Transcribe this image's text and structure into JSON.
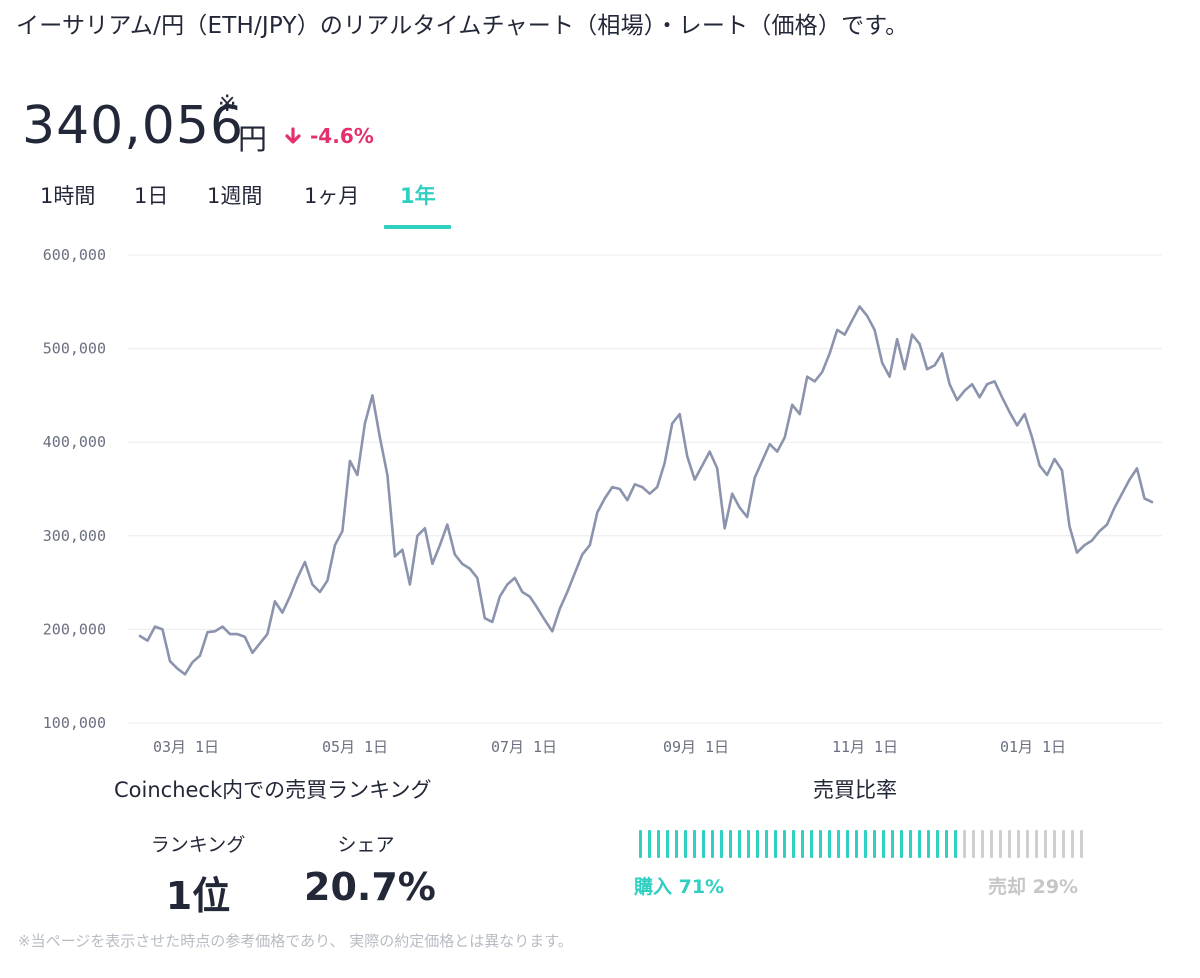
{
  "header": {
    "title": "イーサリアム/円（ETH/JPY）のリアルタイムチャート（相場）・レート（価格）です。"
  },
  "price": {
    "value": "340,056",
    "asterisk": "※",
    "unit": "円",
    "change": "-4.6%",
    "change_color": "#e5306f",
    "change_icon": "arrow-down-icon"
  },
  "tabs": [
    {
      "label": "1時間",
      "active": false
    },
    {
      "label": "1日",
      "active": false
    },
    {
      "label": "1週間",
      "active": false
    },
    {
      "label": "1ヶ月",
      "active": false
    },
    {
      "label": "1年",
      "active": true
    }
  ],
  "accent_color": "#2fcfc1",
  "chart_data": {
    "type": "line",
    "title": "",
    "xlabel": "",
    "ylabel": "",
    "y_tick_labels": [
      "600,000",
      "500,000",
      "400,000",
      "300,000",
      "200,000",
      "100,000"
    ],
    "y_ticks": [
      600000,
      500000,
      400000,
      300000,
      200000,
      100000
    ],
    "ylim": [
      100000,
      600000
    ],
    "x_tick_labels": [
      "03月 1日",
      "05月 1日",
      "07月 1日",
      "09月 1日",
      "11月 1日",
      "01月 1日"
    ],
    "grid": true,
    "line_color": "#8b93ad",
    "series": [
      {
        "values": [
          193000,
          188000,
          203000,
          200000,
          166000,
          158000,
          152000,
          165000,
          172000,
          197000,
          198000,
          203000,
          195000,
          195000,
          192000,
          175000,
          185000,
          195000,
          230000,
          218000,
          235000,
          255000,
          272000,
          248000,
          240000,
          252000,
          290000,
          305000,
          380000,
          365000,
          420000,
          450000,
          405000,
          365000,
          278000,
          285000,
          248000,
          300000,
          308000,
          270000,
          290000,
          312000,
          280000,
          270000,
          265000,
          255000,
          212000,
          208000,
          235000,
          248000,
          255000,
          240000,
          235000,
          223000,
          210000,
          198000,
          222000,
          240000,
          260000,
          280000,
          290000,
          325000,
          340000,
          352000,
          350000,
          338000,
          355000,
          352000,
          345000,
          352000,
          378000,
          420000,
          430000,
          385000,
          360000,
          375000,
          390000,
          372000,
          308000,
          345000,
          330000,
          320000,
          362000,
          380000,
          398000,
          390000,
          405000,
          440000,
          430000,
          470000,
          465000,
          475000,
          495000,
          520000,
          515000,
          530000,
          545000,
          535000,
          520000,
          485000,
          470000,
          510000,
          478000,
          515000,
          505000,
          478000,
          482000,
          495000,
          462000,
          445000,
          455000,
          462000,
          448000,
          462000,
          465000,
          448000,
          432000,
          418000,
          430000,
          405000,
          375000,
          365000,
          382000,
          370000,
          310000,
          282000,
          290000,
          295000,
          305000,
          312000,
          330000,
          345000,
          360000,
          372000,
          340000,
          336000
        ]
      }
    ]
  },
  "ranking": {
    "title": "Coincheck内での売買ランキング",
    "rank_label": "ランキング",
    "rank_value": "1位",
    "share_label": "シェア",
    "share_value": "20.7%"
  },
  "ratio": {
    "title": "売買比率",
    "buy_fraction": 0.71,
    "buy_label": "購入 71%",
    "sell_label": "売却 29%",
    "buy_color": "#2fcfc1",
    "sell_color": "#cfcfcf"
  },
  "footnote": "※当ページを表示させた時点の参考価格であり、 実際の約定価格とは異なります。"
}
